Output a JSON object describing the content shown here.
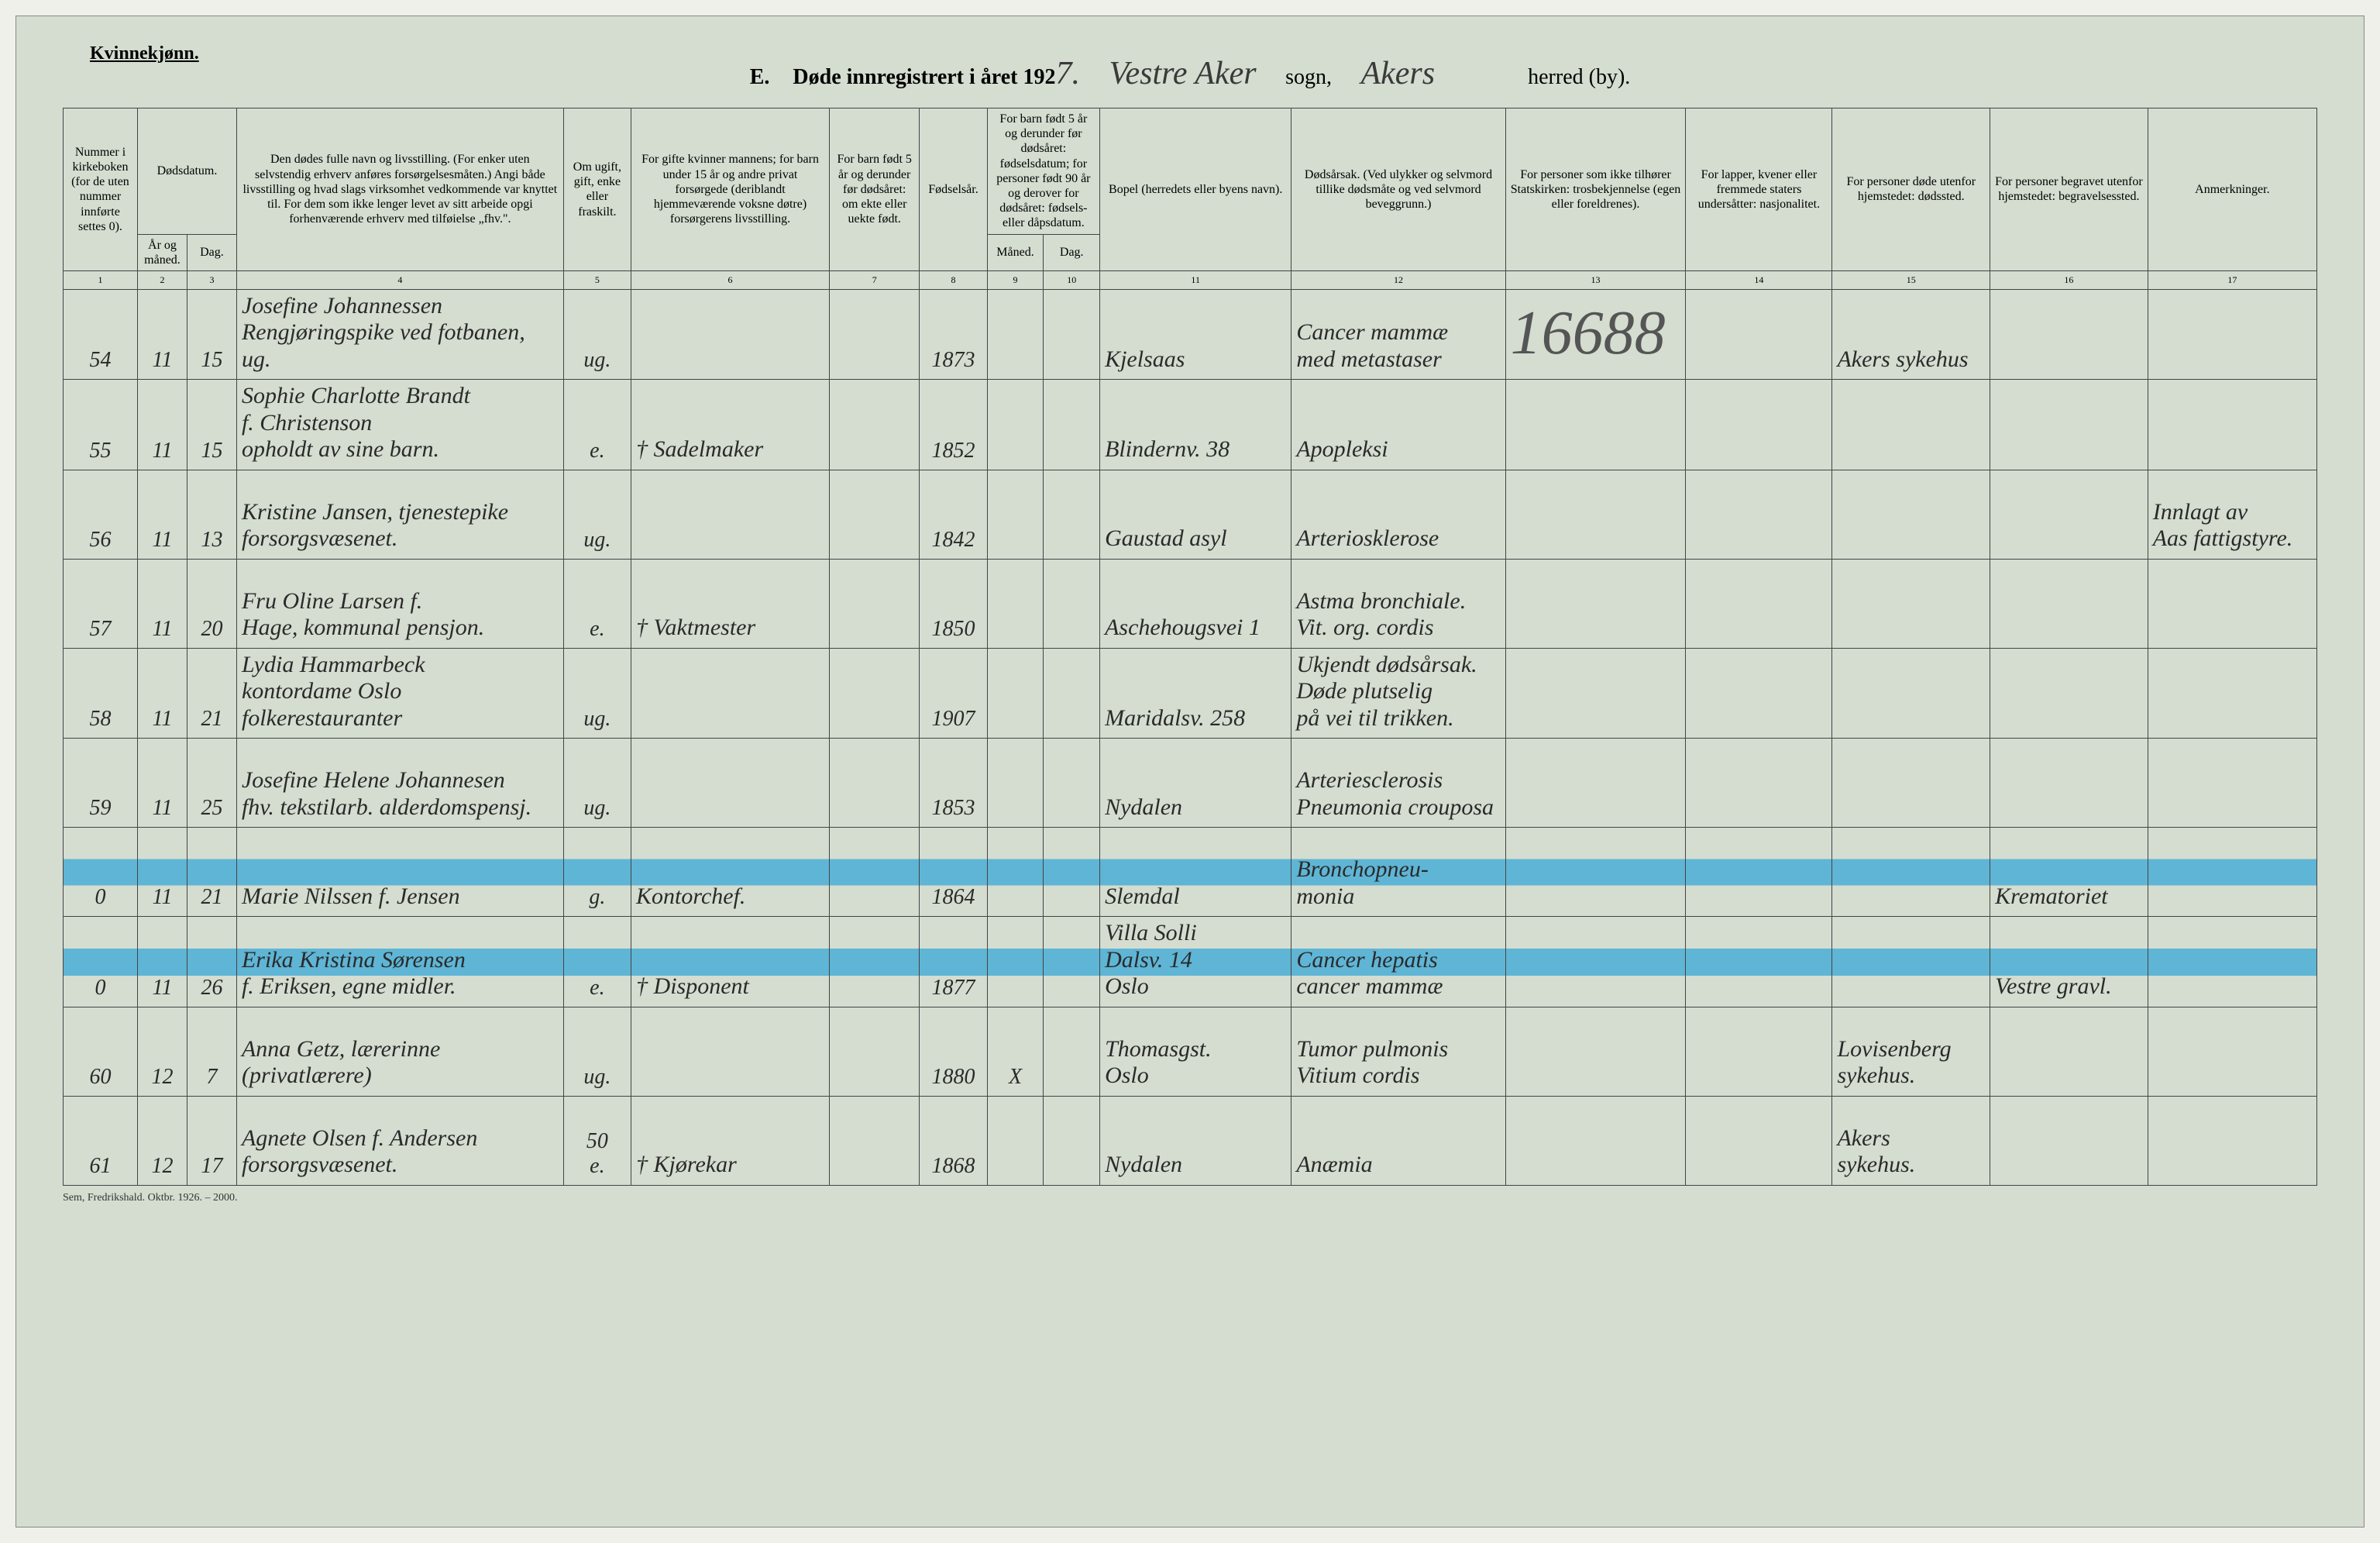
{
  "header": {
    "gender_label": "Kvinnekjønn.",
    "section_letter": "E.",
    "title_prefix": "Døde innregistrert i året 192",
    "year_suffix": "7.",
    "parish_hand": "Vestre Aker",
    "sogn_label": "sogn,",
    "district_hand": "Akers",
    "herred_label": "herred (by).",
    "footer": "Sem, Fredrikshald. Oktbr. 1926. – 2000."
  },
  "columns": {
    "widths_pct": [
      3.3,
      2.2,
      2.2,
      14.5,
      3.0,
      8.8,
      4.0,
      3.0,
      2.5,
      2.5,
      8.5,
      9.5,
      8.0,
      6.5,
      7.0,
      7.0,
      7.5
    ],
    "labels": [
      "Nummer i kirke­boken (for de uten nummer innførte settes 0).",
      "Dødsdatum.",
      "",
      "Den dødes fulle navn og livsstilling. (For enker uten selvstendig erhverv anføres forsørgelsesmåten.) Angi både livsstilling og hvad slags virksomhet vedkommende var knyttet til. For dem som ikke lenger levet av sitt arbeide opgi forhenværende erhverv med tilføielse „fhv.\".",
      "Om ugift, gift, enke eller fraskilt.",
      "For gifte kvinner mannens; for barn under 15 år og andre privat forsørgede (deriblandt hjemmeværende voksne døtre) forsørgerens livsstilling.",
      "For barn født 5 år og derunder før døds­året: om ekte eller uekte født.",
      "Fødsels­år.",
      "For barn født 5 år og der­under før dødsåret: fødselsdatum; for personer født 90 år og derover for dødsåret: fødsels- eller dåpsdatum.",
      "",
      "Bopel (herredets eller byens navn).",
      "Dødsårsak. (Ved ulykker og selv­mord tillike dødsmåte og ved selvmord beveggrunn.)",
      "For personer som ikke tilhører Statskirken: trosbekjennelse (egen eller foreldrenes).",
      "For lapper, kvener eller fremmede staters undersåtter: nasjonalitet.",
      "For personer døde utenfor hjemstedet: dødssted.",
      "For personer begravet utenfor hjemstedet: begravelsessted.",
      "Anmerkninger."
    ],
    "sub_labels": {
      "col2": "År og måned.",
      "col3": "Dag.",
      "col9": "Måned.",
      "col10": "Dag."
    },
    "numbers": [
      "1",
      "2",
      "3",
      "4",
      "5",
      "6",
      "7",
      "8",
      "9",
      "10",
      "11",
      "12",
      "13",
      "14",
      "15",
      "16",
      "17"
    ]
  },
  "rows": [
    {
      "nr": "54",
      "mnd": "11",
      "dag": "15",
      "name": "Josefine Johannessen\nRengjøringspike ved fotbanen, ug.",
      "status": "ug.",
      "forsorg": "",
      "born": "1873",
      "bopel": "Kjelsaas",
      "cause": "Cancer mammæ\nmed metastaser",
      "big": "16688",
      "dsted": "Akers sykehus",
      "highlight": false
    },
    {
      "nr": "55",
      "mnd": "11",
      "dag": "15",
      "name": "Sophie Charlotte Brandt\nf. Christenson\nopholdt av sine barn.",
      "status": "e.",
      "forsorg": "† Sadelmaker",
      "born": "1852",
      "bopel": "Blindernv. 38",
      "cause": "Apopleksi",
      "highlight": false
    },
    {
      "nr": "56",
      "mnd": "11",
      "dag": "13",
      "name": "Kristine Jansen, tjenestepike\nforsorgsvæsenet.",
      "status": "ug.",
      "forsorg": "",
      "born": "1842",
      "bopel": "Gaustad asyl",
      "cause": "Arteriosklerose",
      "anm": "Innlagt av\nAas fattigstyre.",
      "highlight": false
    },
    {
      "nr": "57",
      "mnd": "11",
      "dag": "20",
      "name": "Fru Oline Larsen f.\nHage, kommunal pensjon.",
      "status": "e.",
      "forsorg": "† Vaktmester",
      "born": "1850",
      "bopel": "Aschehougsvei 1",
      "cause": "Astma bronchiale.\nVit. org. cordis",
      "highlight": false
    },
    {
      "nr": "58",
      "mnd": "11",
      "dag": "21",
      "name": "Lydia Hammarbeck\nkontordame Oslo folkerestauranter",
      "status": "ug.",
      "forsorg": "",
      "born": "1907",
      "bopel": "Maridalsv. 258",
      "cause": "Ukjendt dødsårsak.\nDøde plutselig\npå vei til trikken.",
      "highlight": false
    },
    {
      "nr": "59",
      "mnd": "11",
      "dag": "25",
      "name": "Josefine Helene Johannesen\nfhv. tekstilarb. alderdomspensj.",
      "status": "ug.",
      "forsorg": "",
      "born": "1853",
      "bopel": "Nydalen",
      "cause": "Arteriesclerosis\nPneumonia crouposa",
      "highlight": false
    },
    {
      "nr": "0",
      "mnd": "11",
      "dag": "21",
      "name": "Marie Nilssen f. Jensen",
      "status": "g.",
      "forsorg": "Kontorchef.",
      "born": "1864",
      "bopel": "Slemdal",
      "cause": "Bronchopneu-\nmonia",
      "begr": "Krematoriet",
      "highlight": true
    },
    {
      "nr": "0",
      "mnd": "11",
      "dag": "26",
      "name": "Erika Kristina Sørensen\nf. Eriksen, egne midler.",
      "status": "e.",
      "forsorg": "† Disponent",
      "born": "1877",
      "bopel": "Villa Solli\nDalsv. 14\nOslo",
      "cause": "Cancer hepatis\ncancer mammæ",
      "begr": "Vestre gravl.",
      "highlight": true
    },
    {
      "nr": "60",
      "mnd": "12",
      "dag": "7",
      "name": "Anna Getz, lærerinne\n(privatlærere)",
      "status": "ug.",
      "forsorg": "",
      "born": "1880",
      "x8": "X",
      "bopel": "Thomasgst.\nOslo",
      "cause": "Tumor pulmonis\nVitium cordis",
      "dsted": "Lovisenberg\nsykehus.",
      "highlight": false
    },
    {
      "nr": "61",
      "mnd": "12",
      "dag": "17",
      "name": "Agnete Olsen f. Andersen\nforsorgsvæsenet.",
      "status": "e.",
      "forsorg": "† Kjørekar",
      "status_note": "50",
      "born": "1868",
      "bopel": "Nydalen",
      "cause": "Anæmia",
      "dsted": "Akers\nsykehus.",
      "highlight": false
    }
  ],
  "style": {
    "background": "#d4ddd0",
    "border_color": "#444444",
    "handwriting_color": "#2a2a2a",
    "highlight_color": "#5fb5d5",
    "header_fontsize_pt": 16,
    "body_fontsize_pt": 30,
    "title_fontsize_pt": 30
  }
}
